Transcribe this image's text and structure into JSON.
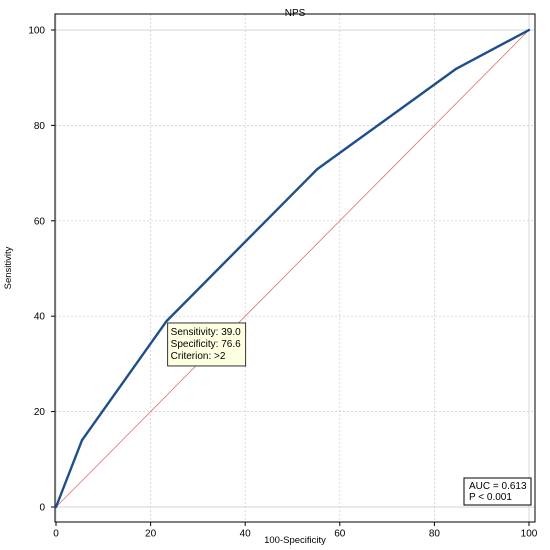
{
  "chart_data": {
    "type": "line",
    "title": "NPS",
    "xlabel": "100-Specificity",
    "ylabel": "Sensitivity",
    "xlim": [
      0,
      100
    ],
    "ylim": [
      0,
      100
    ],
    "xticks": [
      0,
      20,
      40,
      60,
      80,
      100
    ],
    "yticks": [
      0,
      20,
      40,
      60,
      80,
      100
    ],
    "grid": true,
    "series": [
      {
        "color": "#1f4e8c",
        "x": [
          0,
          5.5,
          23.4,
          55.2,
          84.5,
          100
        ],
        "y": [
          0,
          14,
          39.0,
          70.8,
          91.8,
          100
        ]
      },
      {
        "color": "#e07070",
        "x": [
          0,
          100
        ],
        "y": [
          0,
          100
        ]
      }
    ],
    "annotations": {
      "point": {
        "x": 23.4,
        "y": 39.0,
        "lines": [
          "Sensitivity: 39.0",
          "Specificity: 76.6",
          "Criterion: >2"
        ]
      },
      "summary": {
        "placement": "bottom-right",
        "lines": [
          "AUC = 0.613",
          "P < 0.001"
        ]
      }
    }
  }
}
